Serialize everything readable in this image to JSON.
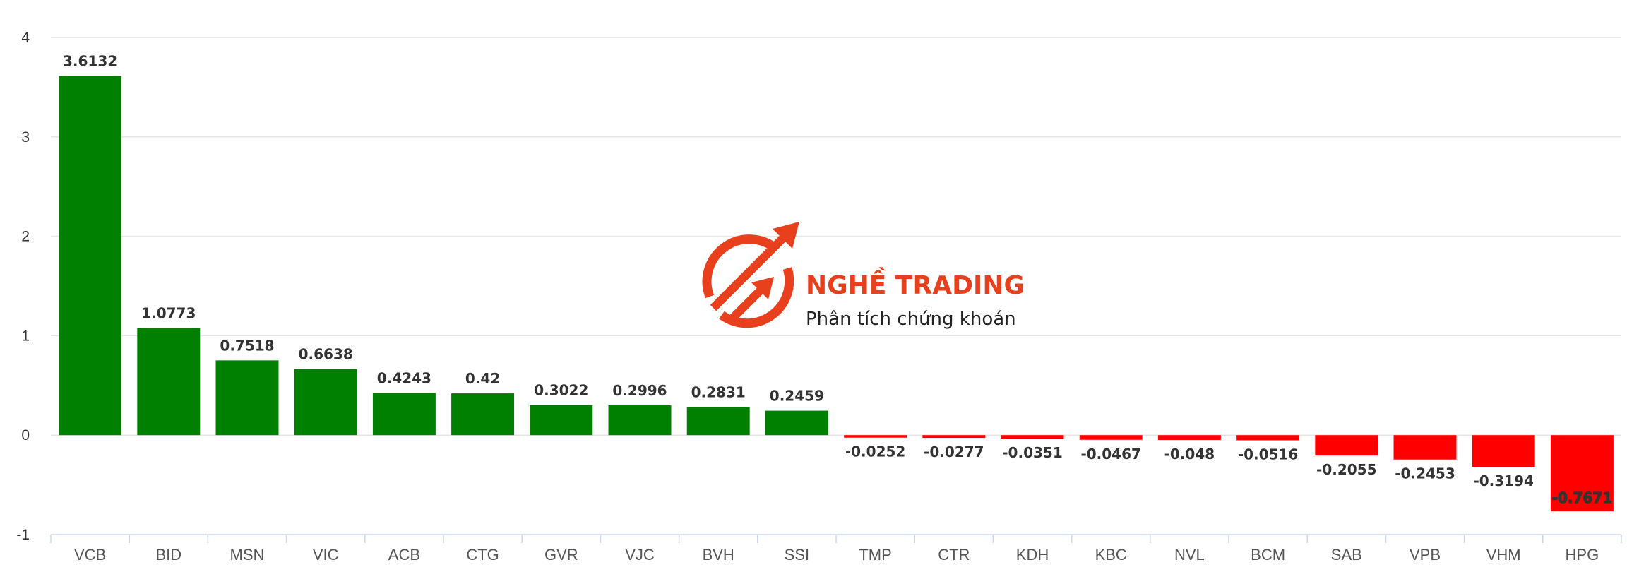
{
  "watermark": {
    "title": "NGHỀ TRADING",
    "subtitle": "Phân tích chứng khoán",
    "color": "#e8401c",
    "icon": "circular-arrows-logo-icon"
  },
  "chart_data": {
    "type": "bar",
    "categories": [
      "VCB",
      "BID",
      "MSN",
      "VIC",
      "ACB",
      "CTG",
      "GVR",
      "VJC",
      "BVH",
      "SSI",
      "TMP",
      "CTR",
      "KDH",
      "KBC",
      "NVL",
      "BCM",
      "SAB",
      "VPB",
      "VHM",
      "HPG"
    ],
    "values": [
      3.6132,
      1.0773,
      0.7518,
      0.6638,
      0.4243,
      0.42,
      0.3022,
      0.2996,
      0.2831,
      0.2459,
      -0.0252,
      -0.0277,
      -0.0351,
      -0.0467,
      -0.048,
      -0.0516,
      -0.2055,
      -0.2453,
      -0.3194,
      -0.7671
    ],
    "data_labels": [
      "3.6132",
      "1.0773",
      "0.7518",
      "0.6638",
      "0.4243",
      "0.42",
      "0.3022",
      "0.2996",
      "0.2831",
      "0.2459",
      "-0.0252",
      "-0.0277",
      "-0.0351",
      "-0.0467",
      "-0.048",
      "-0.0516",
      "-0.2055",
      "-0.2453",
      "-0.3194",
      "-0.7671"
    ],
    "ylim": [
      -1,
      4
    ],
    "yticks": [
      4,
      3,
      2,
      1,
      0,
      -1
    ],
    "ytick_labels": [
      "4",
      "3",
      "2",
      "1",
      "0",
      "-1"
    ],
    "grid": true,
    "positive_color": "#008000",
    "negative_color": "#ff0000"
  }
}
